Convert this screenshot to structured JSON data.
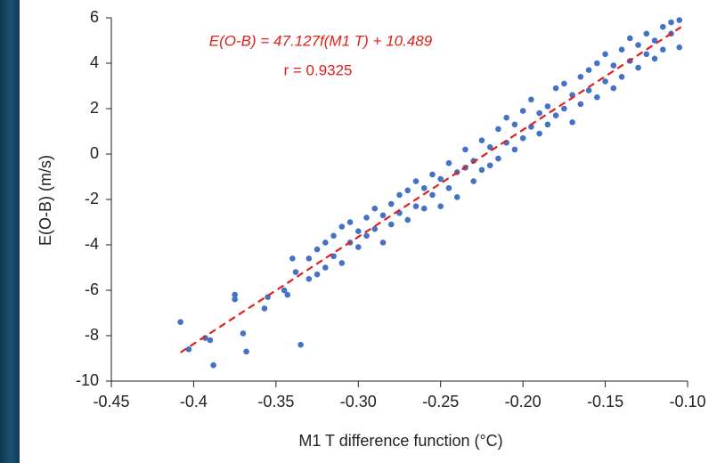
{
  "chart_data": {
    "type": "scatter",
    "annotations": [
      "E(O-B) = 47.127f(M1 T) + 10.489",
      "r = 0.9325"
    ],
    "xlabel": "M1 T difference function (°C)",
    "ylabel": "E(O-B) (m/s)",
    "xlim": [
      -0.45,
      -0.1
    ],
    "ylim": [
      -10,
      6
    ],
    "xticks": [
      -0.45,
      -0.4,
      -0.35,
      {
        "value": -0.3,
        "label": "-0.30"
      },
      -0.25,
      {
        "value": -0.2,
        "label": "-0.20"
      },
      -0.15,
      {
        "value": -0.1,
        "label": "-0.10"
      }
    ],
    "yticks": [
      -10,
      -8,
      -6,
      -4,
      -2,
      0,
      2,
      4,
      6
    ],
    "grid": false,
    "series": [
      {
        "color": "#4472c4",
        "x": [
          -0.408,
          -0.403,
          -0.393,
          -0.39,
          -0.388,
          -0.375,
          -0.375,
          -0.37,
          -0.368,
          -0.357,
          -0.355,
          -0.345,
          -0.343,
          -0.335,
          -0.338,
          -0.34,
          -0.33,
          -0.33,
          -0.325,
          -0.325,
          -0.32,
          -0.32,
          -0.315,
          -0.315,
          -0.31,
          -0.31,
          -0.305,
          -0.305,
          -0.3,
          -0.3,
          -0.295,
          -0.295,
          -0.29,
          -0.29,
          -0.285,
          -0.285,
          -0.28,
          -0.28,
          -0.275,
          -0.275,
          -0.27,
          -0.27,
          -0.265,
          -0.265,
          -0.26,
          -0.26,
          -0.255,
          -0.255,
          -0.25,
          -0.25,
          -0.245,
          -0.245,
          -0.24,
          -0.24,
          -0.235,
          -0.235,
          -0.23,
          -0.23,
          -0.225,
          -0.225,
          -0.22,
          -0.22,
          -0.215,
          -0.215,
          -0.21,
          -0.21,
          -0.205,
          -0.205,
          -0.2,
          -0.2,
          -0.195,
          -0.195,
          -0.19,
          -0.19,
          -0.185,
          -0.185,
          -0.18,
          -0.18,
          -0.175,
          -0.175,
          -0.17,
          -0.17,
          -0.165,
          -0.165,
          -0.16,
          -0.16,
          -0.155,
          -0.155,
          -0.15,
          -0.15,
          -0.145,
          -0.145,
          -0.14,
          -0.14,
          -0.135,
          -0.135,
          -0.13,
          -0.13,
          -0.125,
          -0.125,
          -0.12,
          -0.12,
          -0.115,
          -0.115,
          -0.11,
          -0.11,
          -0.105,
          -0.105
        ],
        "y": [
          -7.4,
          -8.6,
          -8.1,
          -8.2,
          -9.3,
          -6.2,
          -6.4,
          -7.9,
          -8.7,
          -6.8,
          -6.3,
          -6.0,
          -6.2,
          -8.4,
          -5.2,
          -4.6,
          -4.6,
          -5.5,
          -4.2,
          -5.3,
          -3.9,
          -5.0,
          -4.5,
          -3.6,
          -3.2,
          -4.8,
          -3.9,
          -3.0,
          -3.4,
          -4.1,
          -2.8,
          -3.6,
          -3.3,
          -2.4,
          -3.9,
          -2.7,
          -2.2,
          -3.1,
          -1.8,
          -2.6,
          -2.9,
          -1.6,
          -2.3,
          -1.2,
          -1.5,
          -2.4,
          -0.9,
          -1.8,
          -1.1,
          -2.3,
          -0.4,
          -1.5,
          -0.8,
          -1.9,
          0.2,
          -0.6,
          -0.3,
          -1.2,
          0.6,
          -0.7,
          0.3,
          -0.5,
          1.1,
          -0.2,
          0.5,
          1.6,
          1.3,
          0.2,
          1.9,
          0.7,
          1.2,
          2.4,
          0.9,
          1.8,
          2.1,
          1.3,
          2.9,
          1.7,
          2.0,
          3.1,
          2.6,
          1.4,
          3.4,
          2.2,
          2.8,
          3.7,
          4.0,
          2.5,
          3.2,
          4.4,
          3.9,
          2.9,
          4.6,
          3.4,
          4.1,
          5.1,
          4.8,
          3.8,
          4.4,
          5.3,
          5.0,
          4.2,
          5.6,
          4.6,
          5.3,
          5.8,
          5.9,
          4.7
        ]
      }
    ],
    "trendline": {
      "x": [
        -0.408,
        -0.104
      ],
      "y": [
        -8.74,
        5.59
      ],
      "color": "#e0201b",
      "dashed": true
    }
  }
}
